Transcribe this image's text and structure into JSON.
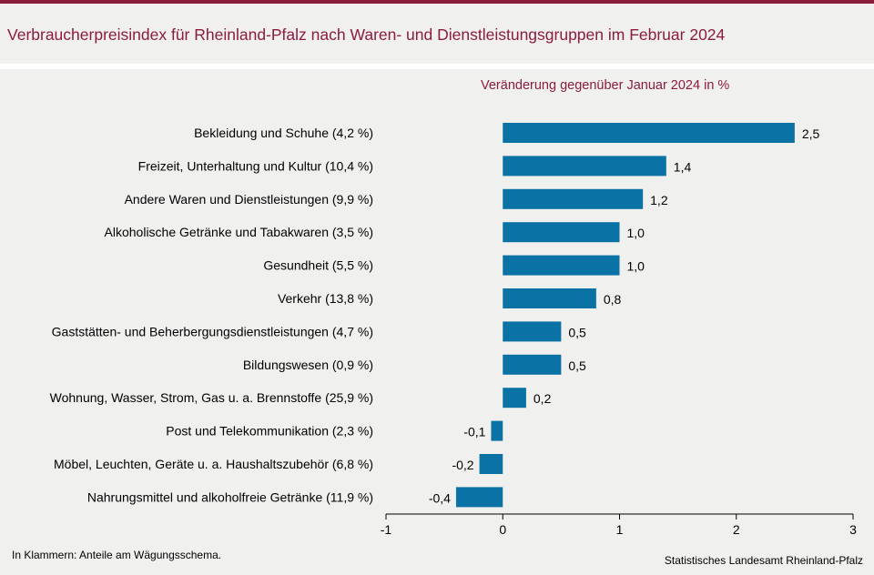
{
  "header": {
    "title": "Verbraucherpreisindex für Rheinland-Pfalz nach Waren- und Dienstleistungsgruppen im Februar 2024"
  },
  "footer": {
    "note": "In Klammern: Anteile am Wägungsschema.",
    "source": "Statistisches Landesamt Rheinland-Pfalz"
  },
  "colors": {
    "accent": "#8c1c3c",
    "bar": "#0a72a4",
    "background": "#f0f0ef"
  },
  "chart_data": {
    "type": "bar",
    "orientation": "horizontal",
    "title": "Verbraucherpreisindex für Rheinland-Pfalz nach Waren- und Dienstleistungsgruppen im Februar 2024",
    "subtitle": "Veränderung gegenüber Januar 2024 in %",
    "categories": [
      "Bekleidung und Schuhe (4,2 %)",
      "Freizeit, Unterhaltung und Kultur (10,4 %)",
      "Andere Waren und Dienstleistungen (9,9 %)",
      "Alkoholische Getränke und Tabakwaren (3,5 %)",
      "Gesundheit (5,5 %)",
      "Verkehr (13,8 %)",
      "Gaststätten- und Beherbergungsdienstleistungen (4,7 %)",
      "Bildungswesen (0,9 %)",
      "Wohnung, Wasser, Strom, Gas u. a. Brennstoffe (25,9 %)",
      "Post und Telekommunikation (2,3 %)",
      "Möbel, Leuchten, Geräte u. a. Haushaltszubehör (6,8 %)",
      "Nahrungsmittel und alkoholfreie Getränke (11,9 %)"
    ],
    "values": [
      2.5,
      1.4,
      1.2,
      1.0,
      1.0,
      0.8,
      0.5,
      0.5,
      0.2,
      -0.1,
      -0.2,
      -0.4
    ],
    "value_labels": [
      "2,5",
      "1,4",
      "1,2",
      "1,0",
      "1,0",
      "0,8",
      "0,5",
      "0,5",
      "0,2",
      "-0,1",
      "-0,2",
      "-0,4"
    ],
    "xlim": [
      -1,
      3
    ],
    "xticks": [
      -1,
      0,
      1,
      2,
      3
    ],
    "xtick_labels": [
      "-1",
      "0",
      "1",
      "2",
      "3"
    ],
    "grid": false
  }
}
